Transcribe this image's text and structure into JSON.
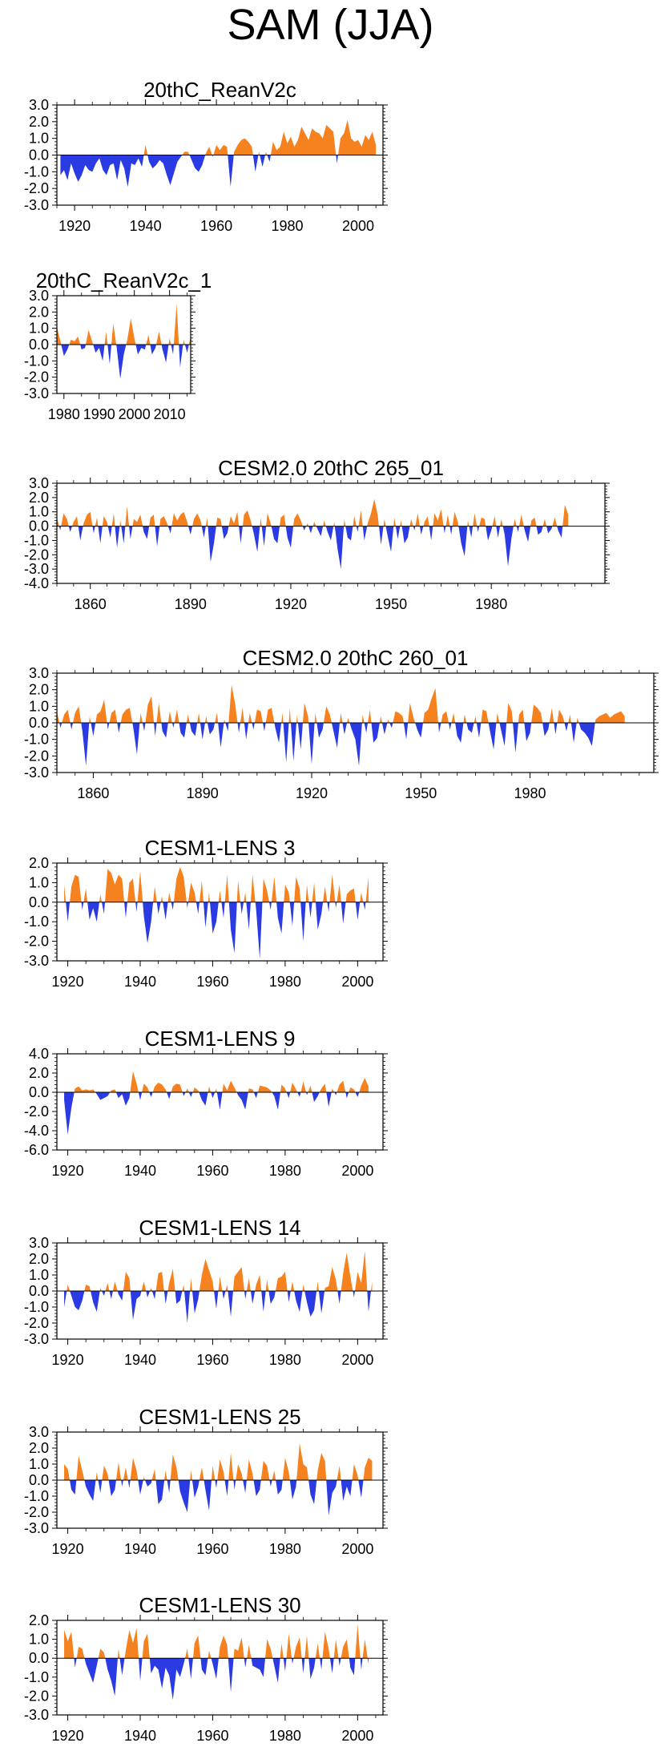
{
  "title": "SAM (JJA)",
  "colors": {
    "positive": "#F5821F",
    "negative": "#2B3BE3",
    "axis": "#000000"
  },
  "chart_data": [
    {
      "type": "area",
      "title": "20thC_ReanV2c",
      "xlim": [
        1915,
        2007
      ],
      "ylim": [
        -3.0,
        3.0
      ],
      "x_ticks": [
        1920,
        1940,
        1960,
        1980,
        2000
      ],
      "x_tick_labels": [
        "1920",
        "1940",
        "1960",
        "1980",
        "2000"
      ],
      "y_ticks": [
        3,
        2,
        1,
        0,
        -1,
        -2,
        -3
      ],
      "y_tick_labels": [
        "3.0",
        "2.0",
        "1.0",
        "0.0",
        "-1.0",
        "-2.0",
        "-3.0"
      ],
      "x_start": 1916,
      "values": [
        -1.2,
        -0.9,
        -1.5,
        -0.5,
        -1.1,
        -1.6,
        -1.2,
        -0.6,
        -0.9,
        -1.0,
        -0.5,
        -0.2,
        -0.9,
        -1.2,
        -0.6,
        -0.5,
        -1.5,
        -0.3,
        -0.8,
        -1.9,
        -0.5,
        -0.6,
        -0.2,
        -0.7,
        0.6,
        -0.4,
        -0.8,
        -0.6,
        -0.3,
        -0.5,
        -1.2,
        -1.8,
        -1.1,
        -0.4,
        -0.1,
        0.2,
        0.2,
        -0.3,
        -0.8,
        -1.0,
        -0.6,
        0.1,
        0.5,
        -0.1,
        0.6,
        0.3,
        0.6,
        0.5,
        -1.9,
        0.2,
        0.6,
        0.9,
        1.0,
        0.8,
        0.5,
        -1.0,
        0.2,
        -0.7,
        0.2,
        -0.4,
        0.8,
        0.3,
        0.5,
        1.4,
        0.7,
        1.1,
        0.5,
        0.9,
        1.7,
        1.3,
        0.9,
        1.6,
        1.4,
        1.3,
        1.0,
        1.8,
        1.6,
        1.4,
        -0.5,
        1.0,
        1.3,
        2.1,
        1.0,
        0.8,
        0.9,
        0.5,
        1.2,
        0.9,
        1.4,
        0.6
      ],
      "series_colors": "positive-orange / negative-blue"
    },
    {
      "type": "area",
      "title": "20thC_ReanV2c_1",
      "xlim": [
        1978,
        2016
      ],
      "ylim": [
        -3.0,
        3.0
      ],
      "x_ticks": [
        1980,
        1990,
        2000,
        2010
      ],
      "x_tick_labels": [
        "1980",
        "1990",
        "2000",
        "2010"
      ],
      "y_ticks": [
        3,
        2,
        1,
        0,
        -1,
        -2,
        -3
      ],
      "y_tick_labels": [
        "3.0",
        "2.0",
        "1.0",
        "0.0",
        "-1.0",
        "-2.0",
        "-3.0"
      ],
      "x_start": 1978,
      "values": [
        1.1,
        0.2,
        -0.7,
        -0.3,
        0.3,
        0.2,
        0.5,
        -0.3,
        -0.2,
        0.9,
        0.2,
        -0.5,
        -0.2,
        -1.0,
        0.8,
        -1.2,
        1.3,
        -0.2,
        -2.1,
        -0.6,
        0.3,
        1.6,
        0.4,
        -0.6,
        -0.2,
        -0.3,
        0.6,
        -0.6,
        -0.2,
        0.8,
        -0.3,
        -1.1,
        0.4,
        -0.6,
        2.5,
        -1.4,
        0.3,
        -0.5,
        0.5
      ],
      "series_colors": "positive-orange / negative-blue"
    },
    {
      "type": "area",
      "title": "CESM2.0 20thC 265_01",
      "xlim": [
        1850,
        2014
      ],
      "ylim": [
        -4.0,
        3.0
      ],
      "x_ticks": [
        1860,
        1890,
        1920,
        1950,
        1980
      ],
      "x_tick_labels": [
        "1860",
        "1890",
        "1920",
        "1950",
        "1980"
      ],
      "y_ticks": [
        3,
        2,
        1,
        0,
        -1,
        -2,
        -3,
        -4
      ],
      "y_tick_labels": [
        "3.0",
        "2.0",
        "1.0",
        "0.0",
        "-1.0",
        "-2.0",
        "-3.0",
        "-4.0"
      ],
      "x_start": 1850,
      "values": [
        0.6,
        -0.3,
        0.9,
        0.5,
        -0.4,
        0.3,
        0.7,
        -1.0,
        0.2,
        0.8,
        1.0,
        -0.5,
        0.6,
        -1.2,
        0.7,
        0.3,
        -0.8,
        0.9,
        -1.5,
        0.4,
        -1.2,
        1.4,
        -0.9,
        0.5,
        0.3,
        0.8,
        -0.4,
        -0.9,
        0.6,
        0.8,
        -1.4,
        0.5,
        0.7,
        0.2,
        -0.5,
        0.9,
        0.4,
        0.8,
        1.0,
        0.3,
        -0.6,
        0.5,
        0.9,
        0.4,
        -0.8,
        0.6,
        -2.5,
        -1.2,
        0.6,
        0.5,
        -0.9,
        -0.5,
        0.7,
        0.2,
        1.0,
        -1.2,
        0.8,
        1.1,
        0.4,
        -0.6,
        -1.8,
        0.6,
        -1.4,
        0.9,
        0.2,
        -0.9,
        -1.2,
        0.6,
        0.8,
        -0.8,
        -1.5,
        0.5,
        0.9,
        0.4,
        -0.3,
        0.2,
        -0.5,
        0.3,
        -0.2,
        -0.7,
        0.4,
        -0.4,
        -1.0,
        0.3,
        -1.6,
        -3.0,
        0.5,
        -0.8,
        -1.0,
        0.7,
        -0.4,
        1.1,
        -1.0,
        0.2,
        0.9,
        1.9,
        0.8,
        -1.3,
        0.5,
        -0.7,
        -1.8,
        0.6,
        -0.9,
        0.4,
        -1.2,
        -0.8,
        0.5,
        -0.3,
        0.9,
        -0.6,
        0.3,
        0.7,
        -1.0,
        0.9,
        0.4,
        1.2,
        -0.5,
        0.8,
        -0.6,
        1.0,
        0.3,
        -1.2,
        -2.1,
        0.4,
        -0.8,
        0.9,
        -0.4,
        0.6,
        0.5,
        -1.0,
        -0.3,
        0.7,
        -0.8,
        0.5,
        -0.6,
        -2.8,
        -0.9,
        0.5,
        -0.4,
        0.8,
        -0.3,
        -1.1,
        0.4,
        0.6,
        -0.6,
        -0.4,
        0.5,
        -0.5,
        -0.2,
        0.6,
        -0.3,
        -0.8,
        1.5,
        0.8
      ],
      "series_colors": "positive-orange / negative-blue"
    },
    {
      "type": "area",
      "title": "CESM2.0 20thC 260_01",
      "xlim": [
        1850,
        2014
      ],
      "ylim": [
        -3.0,
        3.0
      ],
      "x_ticks": [
        1860,
        1890,
        1920,
        1950,
        1980
      ],
      "x_tick_labels": [
        "1860",
        "1890",
        "1920",
        "1950",
        "1980"
      ],
      "y_ticks": [
        3,
        2,
        1,
        0,
        -1,
        -2,
        -3
      ],
      "y_tick_labels": [
        "3.0",
        "2.0",
        "1.0",
        "0.0",
        "-1.0",
        "-2.0",
        "-3.0"
      ],
      "x_start": 1850,
      "values": [
        0.7,
        -0.3,
        0.5,
        0.8,
        -0.4,
        0.6,
        1.0,
        -0.5,
        -2.6,
        0.4,
        -0.8,
        0.5,
        0.7,
        1.4,
        -0.4,
        0.6,
        0.8,
        -0.6,
        0.5,
        0.8,
        0.9,
        -0.3,
        -1.9,
        0.6,
        -0.5,
        1.1,
        1.6,
        -0.8,
        1.2,
        -0.5,
        -0.9,
        0.7,
        -0.3,
        0.8,
        -0.6,
        -0.9,
        0.5,
        -0.5,
        -0.8,
        0.6,
        -1.0,
        0.4,
        -0.7,
        -0.4,
        0.6,
        -1.5,
        0.2,
        -0.5,
        2.3,
        1.1,
        -0.6,
        0.9,
        -1.0,
        0.6,
        -0.4,
        0.8,
        0.7,
        -0.5,
        0.8,
        0.9,
        -0.3,
        -1.2,
        0.6,
        -2.4,
        0.9,
        -2.3,
        0.5,
        -1.6,
        1.2,
        0.4,
        -2.5,
        0.6,
        -0.9,
        -0.4,
        1.0,
        0.5,
        -0.5,
        -1.5,
        0.6,
        -0.7,
        0.3,
        -0.4,
        -1.0,
        -2.6,
        0.5,
        -0.6,
        0.8,
        -1.2,
        -0.9,
        0.4,
        -0.7,
        0.2,
        -0.3,
        0.7,
        0.6,
        0.4,
        -1.0,
        1.2,
        0.3,
        -0.4,
        -0.9,
        0.6,
        0.8,
        1.5,
        2.1,
        -0.6,
        0.5,
        0.7,
        -0.4,
        0.6,
        -0.8,
        -1.2,
        0.5,
        -0.4,
        -0.6,
        0.4,
        -0.9,
        0.8,
        0.7,
        -0.5,
        -1.6,
        0.6,
        -0.4,
        -1.4,
        1.2,
        0.7,
        -1.8,
        0.5,
        0.8,
        -1.1,
        -0.6,
        1.1,
        0.9,
        0.6,
        -0.8,
        -0.4,
        0.9,
        -0.7,
        0.8,
        0.4,
        -0.5,
        0.5,
        -1.2,
        0.3,
        -0.4,
        -0.6,
        -0.9,
        -1.4,
        0.2,
        0.4,
        0.5,
        0.6,
        0.3,
        0.5,
        0.6,
        0.7,
        0.4
      ],
      "series_colors": "positive-orange / negative-blue"
    },
    {
      "type": "area",
      "title": "CESM1-LENS 3",
      "xlim": [
        1917,
        2007
      ],
      "ylim": [
        -3.0,
        2.0
      ],
      "x_ticks": [
        1920,
        1940,
        1960,
        1980,
        2000
      ],
      "x_tick_labels": [
        "1920",
        "1940",
        "1960",
        "1980",
        "2000"
      ],
      "y_ticks": [
        2,
        1,
        0,
        -1,
        -2,
        -3
      ],
      "y_tick_labels": [
        "2.0",
        "1.0",
        "0.0",
        "-1.0",
        "-2.0",
        "-3.0"
      ],
      "x_start": 1919,
      "values": [
        0.9,
        -1.0,
        0.8,
        1.4,
        1.3,
        -0.4,
        0.7,
        -0.9,
        -0.3,
        -1.0,
        0.4,
        -0.6,
        1.7,
        1.5,
        0.9,
        1.4,
        1.2,
        -0.8,
        1.0,
        1.2,
        -0.5,
        1.6,
        -0.7,
        -2.1,
        -1.0,
        0.8,
        -0.6,
        0.3,
        -0.9,
        0.5,
        -0.4,
        1.2,
        1.8,
        1.3,
        -0.3,
        1.0,
        0.5,
        -0.6,
        1.1,
        -1.3,
        0.5,
        -1.6,
        -1.0,
        0.6,
        -0.8,
        1.4,
        -1.4,
        -2.6,
        1.1,
        -0.6,
        0.5,
        -1.4,
        1.4,
        -0.4,
        -2.9,
        1.2,
        0.6,
        -0.4,
        1.3,
        -0.8,
        -1.6,
        0.9,
        0.5,
        -1.2,
        1.3,
        0.7,
        -2.0,
        0.9,
        -0.8,
        1.0,
        -1.4,
        -0.6,
        0.8,
        -0.5,
        1.4,
        -0.3,
        0.9,
        -1.1,
        0.4,
        0.6,
        0.7,
        -0.9,
        0.5,
        -0.4,
        1.3
      ],
      "series_colors": "positive-orange / negative-blue"
    },
    {
      "type": "area",
      "title": "CESM1-LENS 9",
      "xlim": [
        1917,
        2007
      ],
      "ylim": [
        -6.0,
        4.0
      ],
      "x_ticks": [
        1920,
        1940,
        1960,
        1980,
        2000
      ],
      "x_tick_labels": [
        "1920",
        "1940",
        "1960",
        "1980",
        "2000"
      ],
      "y_ticks": [
        4,
        2,
        0,
        -2,
        -4,
        -6
      ],
      "y_tick_labels": [
        "4.0",
        "2.0",
        "0.0",
        "-2.0",
        "-4.0",
        "-6.0"
      ],
      "x_start": 1919,
      "values": [
        -0.8,
        -4.4,
        -1.6,
        0.4,
        0.6,
        0.2,
        0.3,
        0.2,
        0.3,
        -0.2,
        -0.8,
        -0.6,
        -0.4,
        0.2,
        0.3,
        -0.6,
        -0.2,
        -1.4,
        -0.6,
        2.2,
        0.9,
        -0.8,
        0.9,
        0.5,
        -0.5,
        0.6,
        1.0,
        0.8,
        0.3,
        -0.7,
        0.6,
        0.9,
        0.8,
        -0.4,
        0.4,
        -0.5,
        0.5,
        0.2,
        -0.8,
        -1.4,
        0.6,
        -0.6,
        0.4,
        -1.8,
        0.9,
        0.2,
        1.2,
        0.5,
        -0.3,
        -0.8,
        -1.8,
        0.4,
        0.3,
        -0.6,
        0.7,
        0.6,
        0.5,
        0.2,
        -0.4,
        -1.8,
        0.8,
        0.4,
        -0.6,
        1.0,
        0.3,
        -0.5,
        1.1,
        -0.3,
        0.7,
        -1.0,
        -0.4,
        0.4,
        0.9,
        -1.5,
        0.4,
        -0.3,
        0.8,
        1.2,
        -0.6,
        0.5,
        0.3,
        -0.5,
        0.7,
        1.5,
        0.6
      ],
      "series_colors": "positive-orange / negative-blue"
    },
    {
      "type": "area",
      "title": "CESM1-LENS 14",
      "xlim": [
        1917,
        2007
      ],
      "ylim": [
        -3.0,
        3.0
      ],
      "x_ticks": [
        1920,
        1940,
        1960,
        1980,
        2000
      ],
      "x_tick_labels": [
        "1920",
        "1940",
        "1960",
        "1980",
        "2000"
      ],
      "y_ticks": [
        3,
        2,
        1,
        0,
        -1,
        -2,
        -3
      ],
      "y_tick_labels": [
        "3.0",
        "2.0",
        "1.0",
        "0.0",
        "-1.0",
        "-2.0",
        "-3.0"
      ],
      "x_start": 1919,
      "values": [
        -1.0,
        0.4,
        -0.3,
        -1.0,
        -1.2,
        -0.6,
        0.4,
        0.3,
        -0.7,
        -1.3,
        0.2,
        -0.3,
        0.5,
        -0.5,
        0.6,
        -0.2,
        -0.6,
        1.2,
        0.8,
        -1.8,
        -0.5,
        -0.3,
        0.6,
        -0.4,
        0.2,
        -0.5,
        1.1,
        1.2,
        -0.8,
        0.5,
        1.4,
        -0.8,
        -0.6,
        0.4,
        -2.0,
        0.8,
        -1.4,
        -0.5,
        1.0,
        2.0,
        1.3,
        0.6,
        -1.1,
        0.9,
        -0.5,
        0.4,
        -1.6,
        0.9,
        1.2,
        1.5,
        -0.5,
        0.8,
        -0.8,
        0.4,
        1.0,
        -1.3,
        0.7,
        -0.8,
        -0.4,
        0.8,
        0.9,
        1.2,
        -0.7,
        0.6,
        -0.6,
        -1.3,
        0.4,
        -0.7,
        -1.6,
        -1.2,
        0.6,
        -1.4,
        0.2,
        0.3,
        1.5,
        0.7,
        -0.8,
        1.1,
        2.4,
        0.9,
        -0.4,
        1.2,
        0.5,
        2.5,
        -1.3,
        0.6
      ],
      "series_colors": "positive-orange / negative-blue"
    },
    {
      "type": "area",
      "title": "CESM1-LENS 25",
      "xlim": [
        1917,
        2007
      ],
      "ylim": [
        -3.0,
        3.0
      ],
      "x_ticks": [
        1920,
        1940,
        1960,
        1980,
        2000
      ],
      "x_tick_labels": [
        "1920",
        "1940",
        "1960",
        "1980",
        "2000"
      ],
      "y_ticks": [
        3,
        2,
        1,
        0,
        -1,
        -2,
        -3
      ],
      "y_tick_labels": [
        "3.0",
        "2.0",
        "1.0",
        "0.0",
        "-1.0",
        "-2.0",
        "-3.0"
      ],
      "x_start": 1919,
      "values": [
        1.0,
        0.7,
        -0.6,
        -0.9,
        1.5,
        0.6,
        -0.4,
        -0.9,
        -1.3,
        0.5,
        -0.8,
        0.9,
        0.4,
        -1.0,
        -0.6,
        1.1,
        -0.4,
        0.8,
        -0.5,
        1.4,
        0.6,
        -0.9,
        0.2,
        -0.4,
        -0.2,
        0.7,
        -1.5,
        -1.2,
        0.6,
        -0.8,
        1.6,
        0.8,
        -0.7,
        -1.4,
        -2.0,
        0.6,
        -1.1,
        -0.4,
        0.8,
        -0.6,
        -1.9,
        0.9,
        -0.5,
        1.3,
        0.5,
        -1.0,
        1.7,
        -0.6,
        1.0,
        0.4,
        -0.8,
        1.3,
        0.4,
        -1.0,
        -0.6,
        1.2,
        0.9,
        -0.4,
        0.6,
        -0.9,
        -0.6,
        1.4,
        0.5,
        -1.2,
        -0.4,
        2.3,
        1.0,
        0.8,
        -0.9,
        -1.5,
        0.6,
        1.7,
        1.2,
        -2.2,
        -0.8,
        -0.4,
        0.9,
        -1.3,
        -0.4,
        -1.0,
        1.0,
        0.3,
        -1.1,
        0.8,
        1.4,
        1.2
      ],
      "series_colors": "positive-orange / negative-blue"
    },
    {
      "type": "area",
      "title": "CESM1-LENS 30",
      "xlim": [
        1917,
        2007
      ],
      "ylim": [
        -3.0,
        2.0
      ],
      "x_ticks": [
        1920,
        1940,
        1960,
        1980,
        2000
      ],
      "x_tick_labels": [
        "1920",
        "1940",
        "1960",
        "1980",
        "2000"
      ],
      "y_ticks": [
        2,
        1,
        0,
        -1,
        -2,
        -3
      ],
      "y_tick_labels": [
        "2.0",
        "1.0",
        "0.0",
        "-1.0",
        "-2.0",
        "-3.0"
      ],
      "x_start": 1919,
      "values": [
        1.5,
        0.9,
        1.4,
        -0.5,
        0.6,
        0.5,
        -0.3,
        -0.8,
        -1.3,
        -0.4,
        0.5,
        0.3,
        -0.6,
        -1.2,
        -2.0,
        0.5,
        -0.9,
        0.4,
        1.5,
        0.8,
        1.6,
        -1.2,
        0.9,
        1.3,
        -0.8,
        -0.4,
        -0.6,
        -1.6,
        -0.5,
        -0.9,
        -2.2,
        -0.6,
        -1.0,
        -0.3,
        0.5,
        -1.1,
        0.8,
        1.2,
        -0.6,
        -0.9,
        0.4,
        -0.3,
        -1.1,
        0.6,
        1.2,
        0.7,
        -1.8,
        0.5,
        0.4,
        1.1,
        -0.5,
        0.7,
        -0.4,
        -0.5,
        -0.6,
        -1.0,
        1.0,
        0.5,
        -0.4,
        -1.3,
        0.8,
        -0.7,
        1.3,
        -0.3,
        0.6,
        1.1,
        -0.8,
        1.2,
        -1.1,
        -0.5,
        0.8,
        -0.6,
        1.4,
        0.5,
        -0.8,
        1.0,
        -0.4,
        0.6,
        1.0,
        -0.5,
        -0.9,
        1.8,
        -0.6,
        1.0,
        -0.3
      ],
      "series_colors": "positive-orange / negative-blue"
    }
  ]
}
